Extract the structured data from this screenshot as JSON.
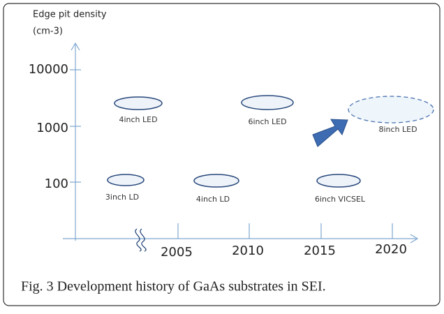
{
  "y_axis": {
    "label": "Edge pit density",
    "unit": "(cm-3)",
    "ticks": [
      "10000",
      "1000",
      "100"
    ]
  },
  "x_axis": {
    "ticks": [
      "2005",
      "2010",
      "2015",
      "2020"
    ]
  },
  "wafers": [
    {
      "label": "4inch LED"
    },
    {
      "label": "6inch LED"
    },
    {
      "label": "8inch LED"
    },
    {
      "label": "3inch LD"
    },
    {
      "label": "4inch LD"
    },
    {
      "label": "6inch VICSEL"
    }
  ],
  "caption": "Fig. 3 Development history of GaAs substrates in SEI."
}
